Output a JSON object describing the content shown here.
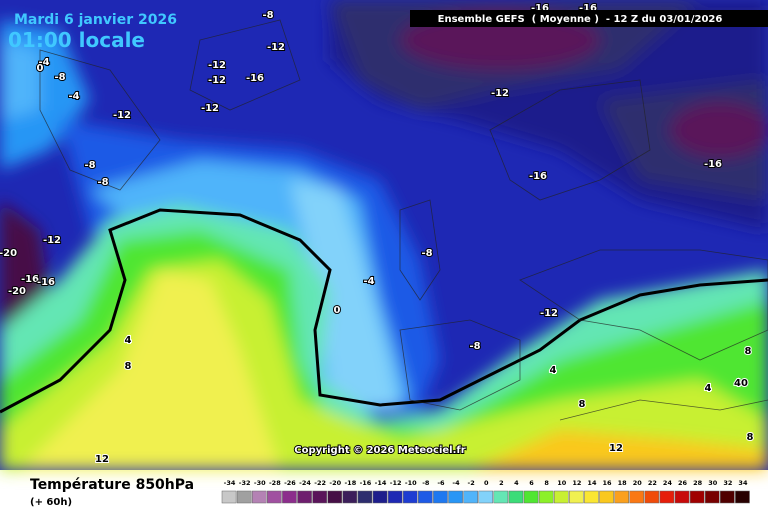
{
  "header": {
    "date": "Mardi 6 janvier 2026",
    "time": "01:00 locale",
    "model": "Ensemble GEFS  ( Moyenne )  - 12 Z du 03/01/2026"
  },
  "copyright": "Copyright © 2026 Meteociel.fr",
  "footer": {
    "title": "Température 850hPa",
    "step": "(+ 60h)"
  },
  "contours": [
    {
      "label": "-8"
    },
    {
      "label": "-12"
    },
    {
      "label": "-12"
    },
    {
      "label": "-16"
    },
    {
      "label": "-12"
    },
    {
      "label": "-12"
    },
    {
      "label": "-12"
    },
    {
      "label": "-12"
    },
    {
      "label": "-16"
    },
    {
      "label": "-16"
    },
    {
      "label": "-8"
    },
    {
      "label": "-8"
    },
    {
      "label": "-16"
    },
    {
      "label": "-16"
    },
    {
      "label": "-12"
    },
    {
      "label": "-20"
    },
    {
      "label": "-16"
    },
    {
      "label": "-16"
    },
    {
      "label": "-20"
    },
    {
      "label": "-8"
    },
    {
      "label": "-4"
    },
    {
      "label": "0"
    },
    {
      "label": "-12"
    },
    {
      "label": "-8"
    },
    {
      "label": "4"
    },
    {
      "label": "8"
    },
    {
      "label": "4"
    },
    {
      "label": "8"
    },
    {
      "label": "4"
    },
    {
      "label": "8"
    },
    {
      "label": "40"
    },
    {
      "label": "12"
    },
    {
      "label": "12"
    },
    {
      "label": "8"
    },
    {
      "label": "-4"
    },
    {
      "label": "0"
    },
    {
      "label": "-8"
    },
    {
      "label": "-4"
    }
  ],
  "legend": [
    {
      "label": "-34",
      "color": "#c8c8c8"
    },
    {
      "label": "-32",
      "color": "#a0a0a0"
    },
    {
      "label": "-30",
      "color": "#b482b4"
    },
    {
      "label": "-28",
      "color": "#a050a0"
    },
    {
      "label": "-26",
      "color": "#8c2d8c"
    },
    {
      "label": "-24",
      "color": "#6e1e6e"
    },
    {
      "label": "-22",
      "color": "#5a145a"
    },
    {
      "label": "-20",
      "color": "#460f46"
    },
    {
      "label": "-18",
      "color": "#3c1e5a"
    },
    {
      "label": "-16",
      "color": "#2d2d6e"
    },
    {
      "label": "-14",
      "color": "#1e1e8c"
    },
    {
      "label": "-12",
      "color": "#1e28b4"
    },
    {
      "label": "-10",
      "color": "#1e3cd2"
    },
    {
      "label": "-8",
      "color": "#1e5ae6"
    },
    {
      "label": "-6",
      "color": "#1e78f0"
    },
    {
      "label": "-4",
      "color": "#2896f5"
    },
    {
      "label": "-2",
      "color": "#50b4fa"
    },
    {
      "label": "0",
      "color": "#82d2fa"
    },
    {
      "label": "2",
      "color": "#64e6b4"
    },
    {
      "label": "4",
      "color": "#3cdc78"
    },
    {
      "label": "6",
      "color": "#50e632"
    },
    {
      "label": "8",
      "color": "#8cf028"
    },
    {
      "label": "10",
      "color": "#c8f032"
    },
    {
      "label": "12",
      "color": "#f0f050"
    },
    {
      "label": "14",
      "color": "#fae632"
    },
    {
      "label": "16",
      "color": "#fac81e"
    },
    {
      "label": "18",
      "color": "#faa01e"
    },
    {
      "label": "20",
      "color": "#fa7814"
    },
    {
      "label": "22",
      "color": "#f04b0a"
    },
    {
      "label": "24",
      "color": "#e61e0a"
    },
    {
      "label": "26",
      "color": "#c80a0a"
    },
    {
      "label": "28",
      "color": "#a00000"
    },
    {
      "label": "30",
      "color": "#780000"
    },
    {
      "label": "32",
      "color": "#500000"
    },
    {
      "label": "34",
      "color": "#280000"
    }
  ]
}
